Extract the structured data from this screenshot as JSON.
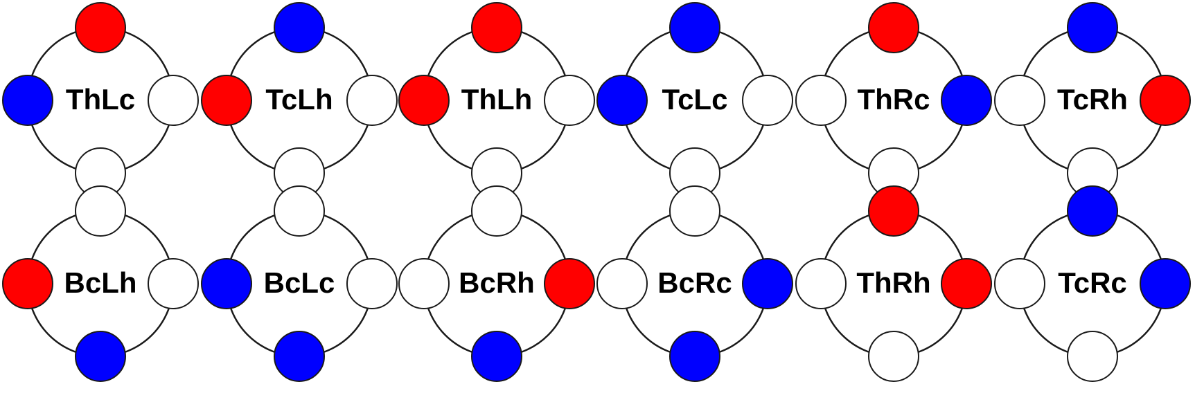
{
  "colors": {
    "red": "#ff0000",
    "blue": "#0000ff",
    "white": "#ffffff",
    "stroke": "#1a1a1a"
  },
  "configs": [
    {
      "label": "ThLc",
      "top": "red",
      "left": "blue",
      "right": "white",
      "bottom": "white"
    },
    {
      "label": "TcLh",
      "top": "blue",
      "left": "red",
      "right": "white",
      "bottom": "white"
    },
    {
      "label": "ThLh",
      "top": "red",
      "left": "red",
      "right": "white",
      "bottom": "white"
    },
    {
      "label": "TcLc",
      "top": "blue",
      "left": "blue",
      "right": "white",
      "bottom": "white"
    },
    {
      "label": "ThRc",
      "top": "red",
      "left": "white",
      "right": "blue",
      "bottom": "white"
    },
    {
      "label": "TcRh",
      "top": "blue",
      "left": "white",
      "right": "red",
      "bottom": "white"
    },
    {
      "label": "BcLh",
      "top": "white",
      "left": "red",
      "right": "white",
      "bottom": "blue"
    },
    {
      "label": "BcLc",
      "top": "white",
      "left": "blue",
      "right": "white",
      "bottom": "blue"
    },
    {
      "label": "BcRh",
      "top": "white",
      "left": "white",
      "right": "red",
      "bottom": "blue"
    },
    {
      "label": "BcRc",
      "top": "white",
      "left": "white",
      "right": "blue",
      "bottom": "blue"
    },
    {
      "label": "ThRh",
      "top": "red",
      "left": "white",
      "right": "red",
      "bottom": "white"
    },
    {
      "label": "TcRc",
      "top": "blue",
      "left": "white",
      "right": "blue",
      "bottom": "white"
    }
  ]
}
